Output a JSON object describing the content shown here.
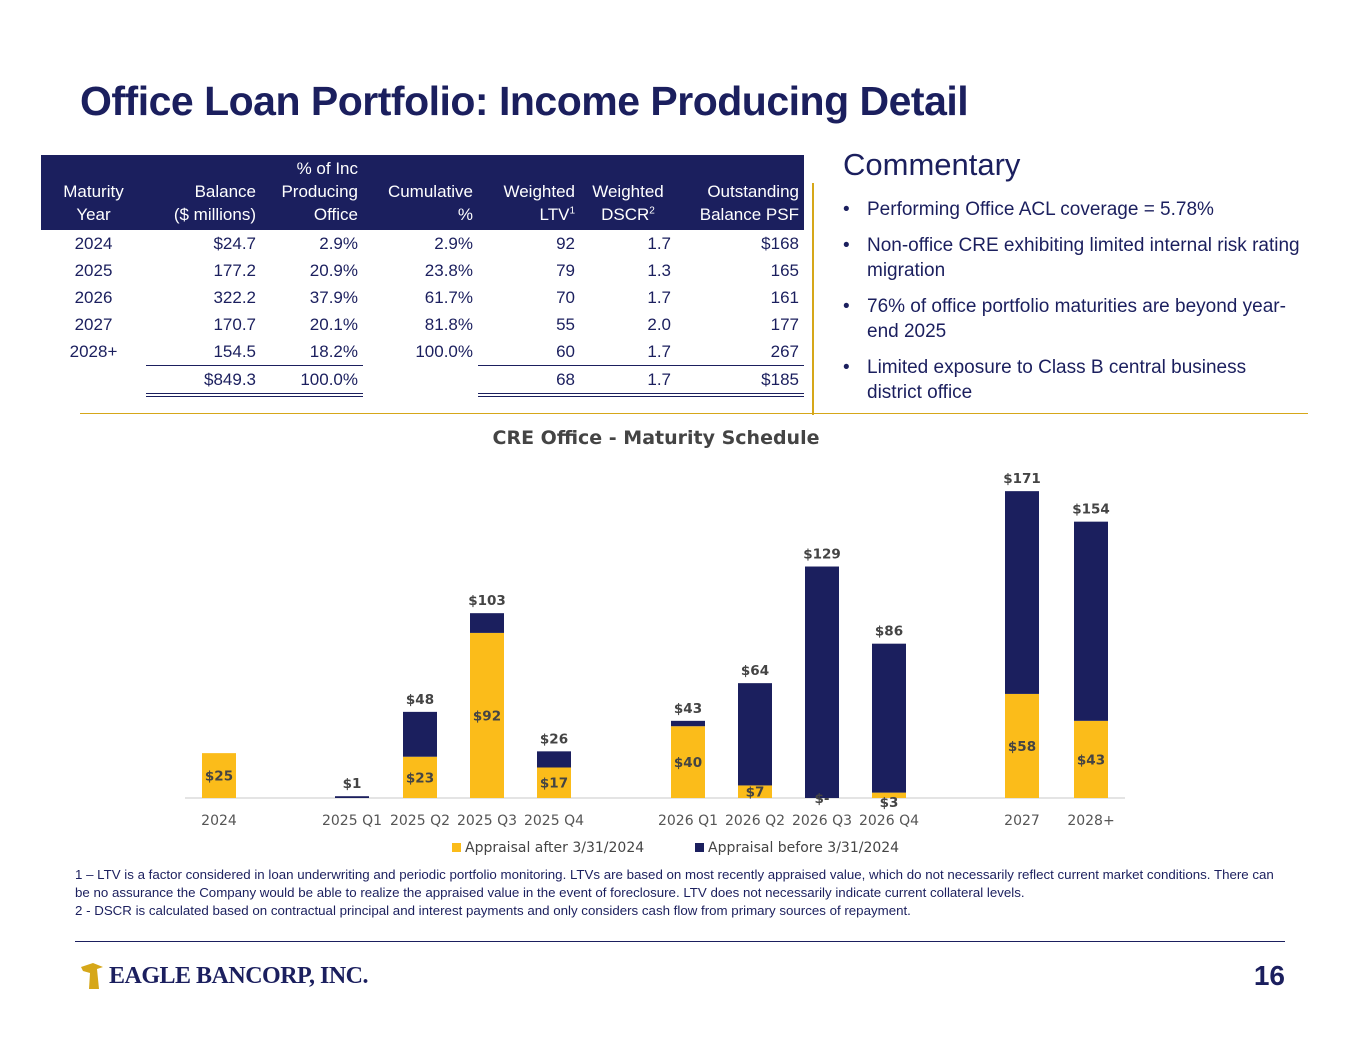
{
  "title": "Office Loan Portfolio: Income Producing Detail",
  "table": {
    "headers": [
      [
        "Maturity",
        "Year"
      ],
      [
        "Balance",
        "($ millions)"
      ],
      [
        "% of Inc",
        "Producing",
        "Office"
      ],
      [
        "Cumulative",
        "%"
      ],
      [
        "Weighted",
        "LTV",
        "1"
      ],
      [
        "Weighted",
        "DSCR",
        "2"
      ],
      [
        "Outstanding",
        "Balance PSF"
      ]
    ],
    "rows": [
      [
        "2024",
        "$24.7",
        "2.9%",
        "2.9%",
        "92",
        "1.7",
        "$168"
      ],
      [
        "2025",
        "177.2",
        "20.9%",
        "23.8%",
        "79",
        "1.3",
        "165"
      ],
      [
        "2026",
        "322.2",
        "37.9%",
        "61.7%",
        "70",
        "1.7",
        "161"
      ],
      [
        "2027",
        "170.7",
        "20.1%",
        "81.8%",
        "55",
        "2.0",
        "177"
      ],
      [
        "2028+",
        "154.5",
        "18.2%",
        "100.0%",
        "60",
        "1.7",
        "267"
      ]
    ],
    "total": [
      "",
      "$849.3",
      "100.0%",
      "",
      "68",
      "1.7",
      "$185"
    ]
  },
  "commentary": {
    "title": "Commentary",
    "bullets": [
      "Performing Office ACL coverage = 5.78%",
      "Non-office CRE exhibiting limited internal risk rating migration",
      "76% of office portfolio maturities are beyond year-end 2025",
      "Limited exposure to Class B central business district office"
    ]
  },
  "chart_data": {
    "type": "bar",
    "stacked": true,
    "title": "CRE Office - Maturity Schedule",
    "categories": [
      "2024",
      "2025 Q1",
      "2025 Q2",
      "2025 Q3",
      "2025 Q4",
      "2026 Q1",
      "2026 Q2",
      "2026 Q3",
      "2026 Q4",
      "2027",
      "2028+"
    ],
    "series": [
      {
        "name": "Appraisal after 3/31/2024",
        "color": "#fbbc1a",
        "values": [
          25,
          0,
          23,
          92,
          17,
          40,
          7,
          0,
          3,
          58,
          43
        ],
        "labels": [
          "$25",
          "",
          "$23",
          "$92",
          "$17",
          "$40",
          "$7",
          "$-",
          "$3",
          "$58",
          "$43"
        ]
      },
      {
        "name": "Appraisal before 3/31/2024",
        "color": "#1b1f5e",
        "values": [
          0,
          1,
          25,
          11,
          9,
          3,
          57,
          129,
          83,
          113,
          111
        ]
      }
    ],
    "totals": [
      25,
      1,
      48,
      103,
      26,
      43,
      64,
      129,
      86,
      171,
      154
    ],
    "total_labels": [
      "",
      "$1",
      "$48",
      "$103",
      "$26",
      "$43",
      "$64",
      "$129",
      "$86",
      "$171",
      "$154"
    ],
    "ylim": [
      0,
      180
    ],
    "xlabel": "",
    "ylabel": "",
    "legend": "bottom",
    "grid": false
  },
  "footnotes": [
    "1 – LTV is a factor considered in loan underwriting and periodic portfolio monitoring. LTVs are based on most recently appraised value, which do not necessarily reflect current market conditions. There can be no assurance the Company would be able to realize the appraised value in the event of foreclosure. LTV does not necessarily indicate current collateral levels.",
    "2 - DSCR is calculated based on contractual principal and interest payments and only considers cash flow from primary sources of repayment."
  ],
  "logo_text": "EAGLE BANCORP, INC.",
  "page_number": "16"
}
